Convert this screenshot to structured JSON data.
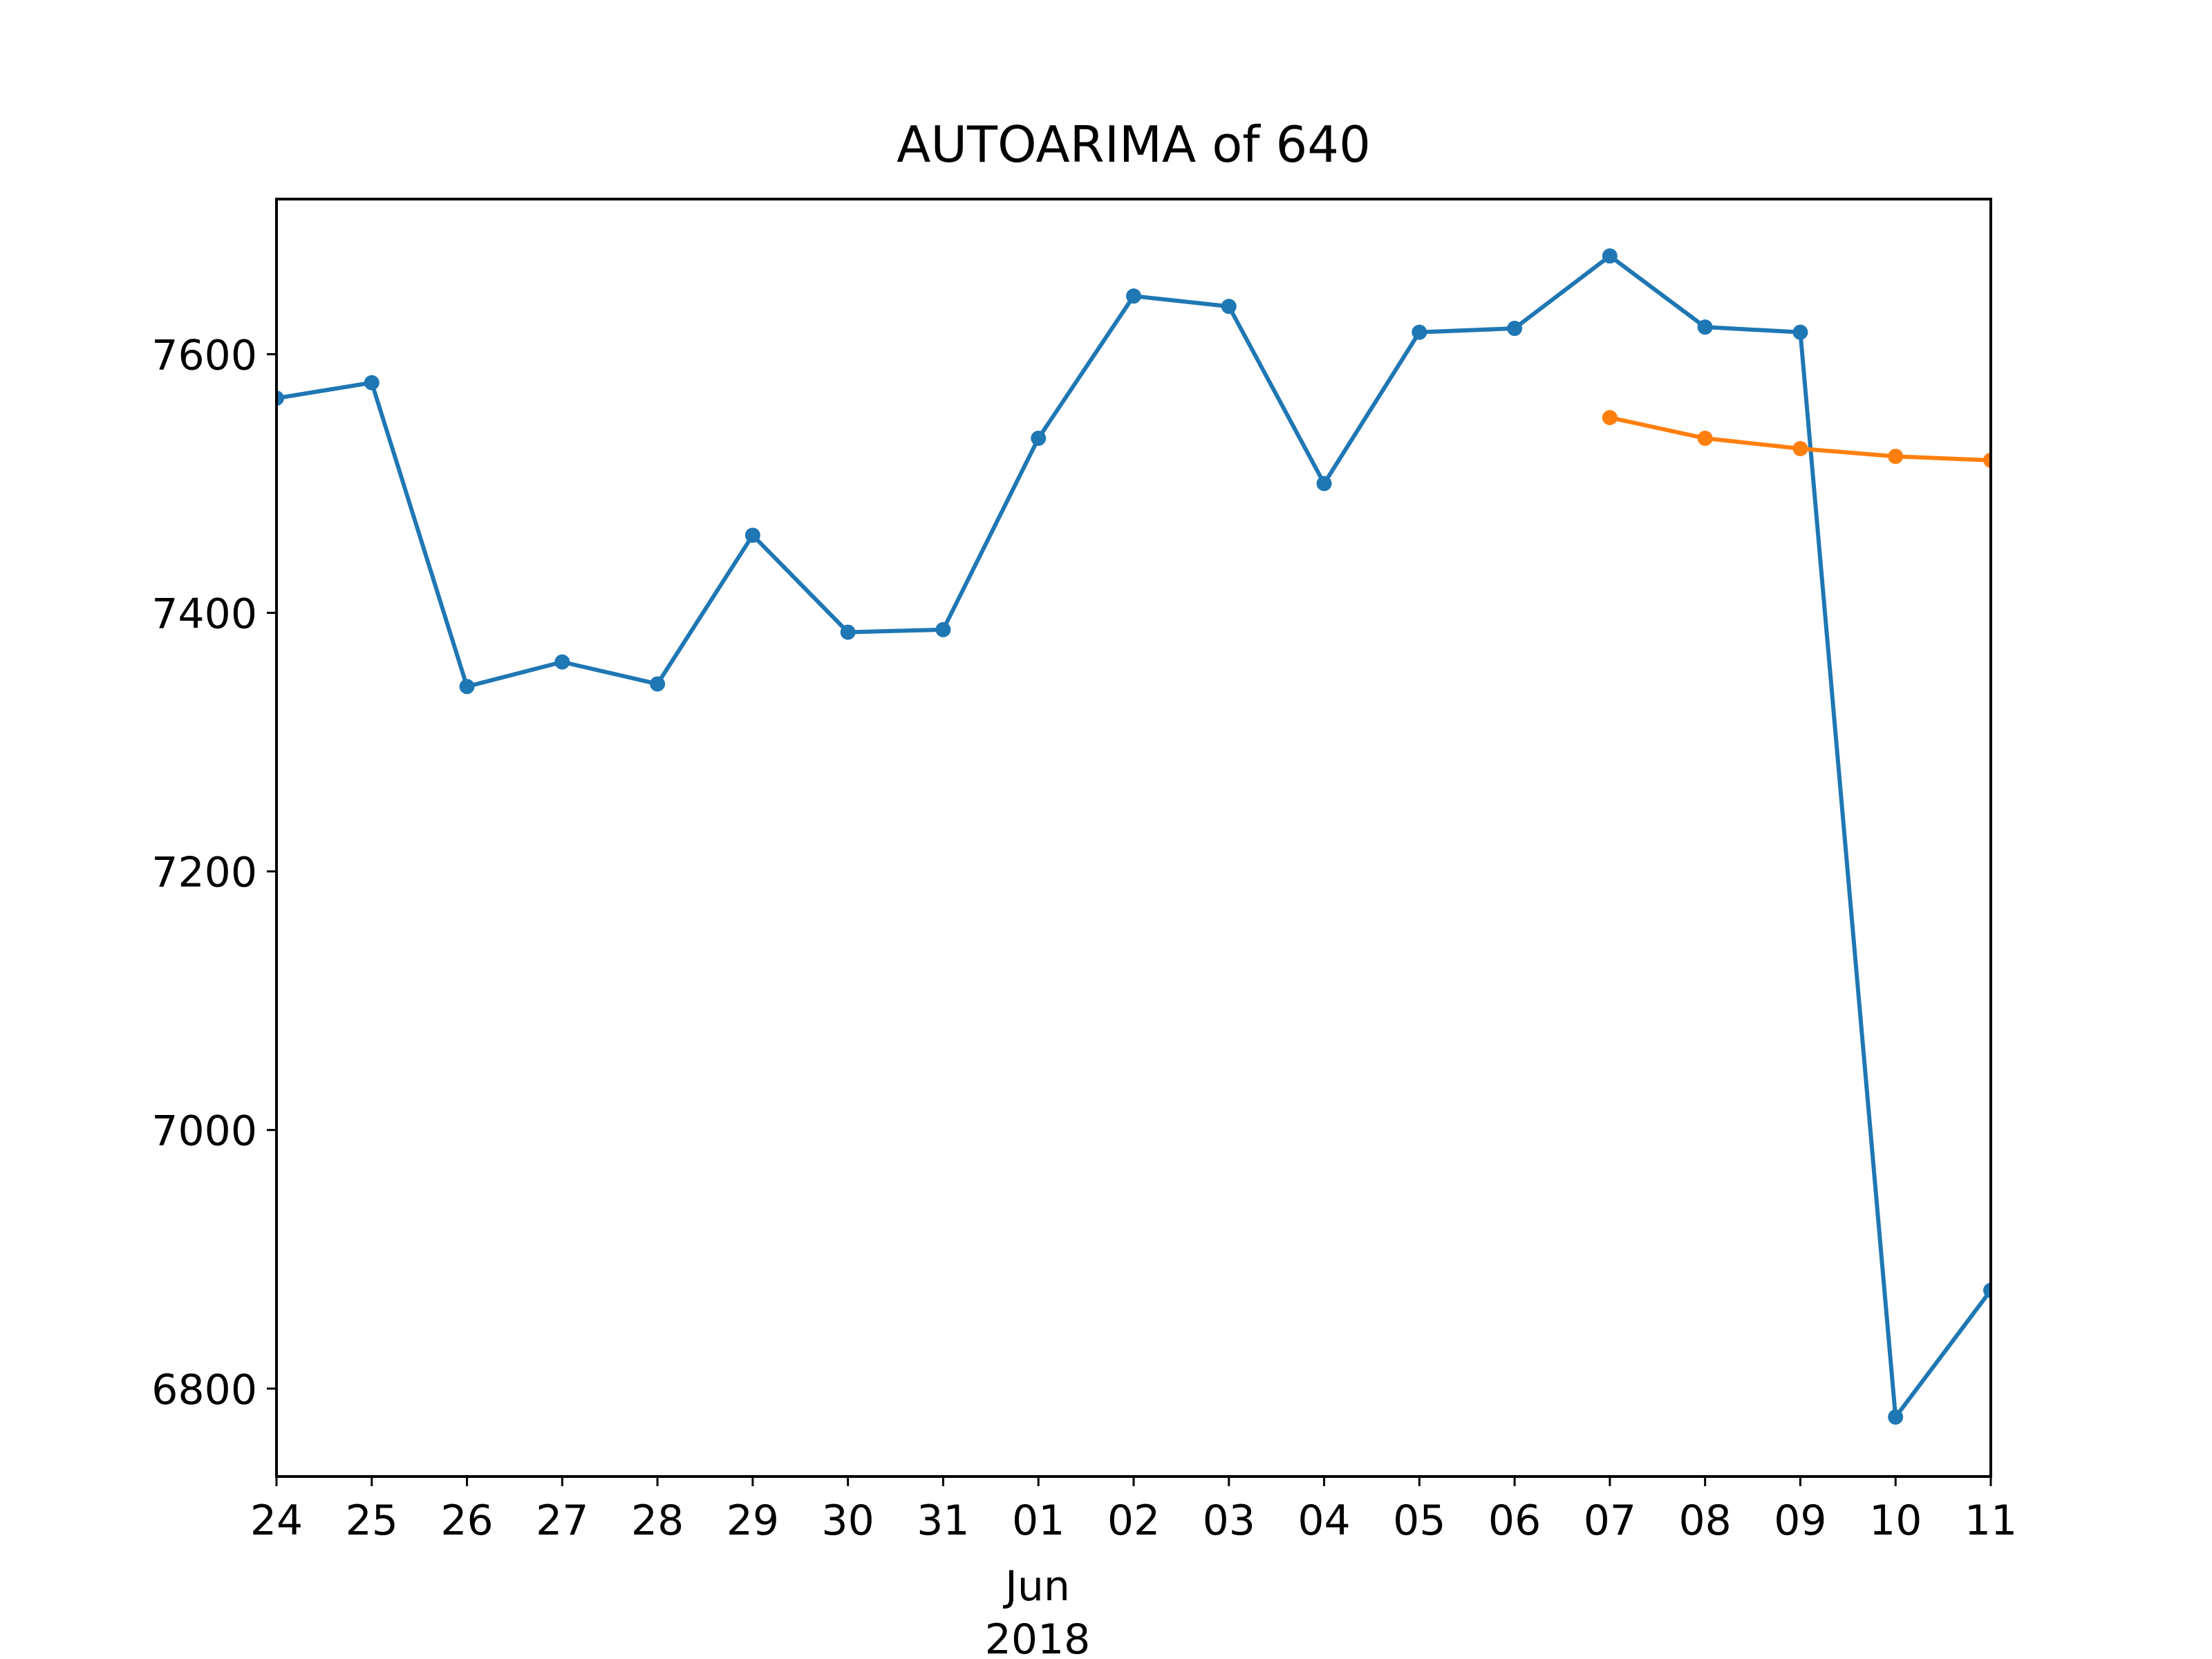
{
  "chart_data": {
    "type": "line",
    "title": "AUTOARIMA of 640",
    "xlabel": "",
    "ylabel": "",
    "x": [
      "2018-05-24",
      "2018-05-25",
      "2018-05-26",
      "2018-05-27",
      "2018-05-28",
      "2018-05-29",
      "2018-05-30",
      "2018-05-31",
      "2018-06-01",
      "2018-06-02",
      "2018-06-03",
      "2018-06-04",
      "2018-06-05",
      "2018-06-06",
      "2018-06-07",
      "2018-06-08",
      "2018-06-09",
      "2018-06-10",
      "2018-06-11"
    ],
    "x_tick_labels": [
      "24",
      "25",
      "26",
      "27",
      "28",
      "29",
      "30",
      "31",
      "01",
      "02",
      "03",
      "04",
      "05",
      "06",
      "07",
      "08",
      "09",
      "10",
      "11"
    ],
    "x_secondary_label": [
      "Jun",
      "2018"
    ],
    "xlim": [
      "2018-05-24",
      "2018-06-11"
    ],
    "ylim": [
      6732,
      7720
    ],
    "y_ticks": [
      6800,
      7000,
      7200,
      7400,
      7600
    ],
    "y_tick_labels": [
      "6800",
      "7000",
      "7200",
      "7400",
      "7600"
    ],
    "grid": false,
    "series": [
      {
        "color": "#1f77b4",
        "x": [
          "2018-05-24",
          "2018-05-25",
          "2018-05-26",
          "2018-05-27",
          "2018-05-28",
          "2018-05-29",
          "2018-05-30",
          "2018-05-31",
          "2018-06-01",
          "2018-06-02",
          "2018-06-03",
          "2018-06-04",
          "2018-06-05",
          "2018-06-06",
          "2018-06-07",
          "2018-06-08",
          "2018-06-09",
          "2018-06-10",
          "2018-06-11"
        ],
        "values": [
          7566,
          7578,
          7343,
          7362,
          7345,
          7460,
          7385,
          7387,
          7535,
          7645,
          7637,
          7500,
          7617,
          7620,
          7676,
          7621,
          7617,
          6778,
          6876
        ]
      },
      {
        "color": "#ff7f0e",
        "x": [
          "2018-06-07",
          "2018-06-08",
          "2018-06-09",
          "2018-06-10",
          "2018-06-11"
        ],
        "values": [
          7551,
          7535,
          7527,
          7521,
          7518
        ]
      }
    ]
  }
}
